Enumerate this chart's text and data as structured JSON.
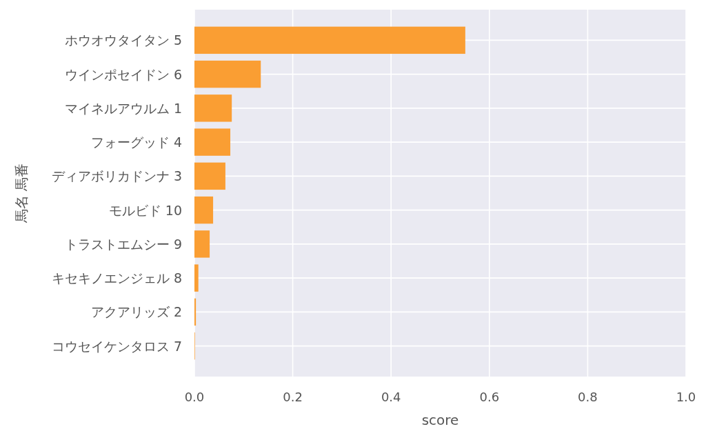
{
  "chart_data": {
    "type": "bar",
    "orientation": "horizontal",
    "xlabel": "score",
    "ylabel": "馬名 馬番",
    "categories": [
      "ホウオウタイタン 5",
      "ウインポセイドン 6",
      "マイネルアウルム 1",
      "フォーグッド 4",
      "ディアボリカドンナ 3",
      "モルビド 10",
      "トラストエムシー 9",
      "キセキノエンジェル 8",
      "アクアリッズ 2",
      "コウセイケンタロス 7"
    ],
    "values": [
      0.551,
      0.135,
      0.076,
      0.073,
      0.063,
      0.038,
      0.031,
      0.008,
      0.003,
      0.001
    ],
    "color": "#fa9e33",
    "xlim": [
      0,
      1
    ],
    "xticks": [
      {
        "value": 0,
        "label": "0.0"
      },
      {
        "value": 0.2,
        "label": "0.2"
      },
      {
        "value": 0.4,
        "label": "0.4"
      },
      {
        "value": 0.6,
        "label": "0.6"
      },
      {
        "value": 0.8,
        "label": "0.8"
      },
      {
        "value": 1,
        "label": "1.0"
      }
    ],
    "grid": true
  }
}
